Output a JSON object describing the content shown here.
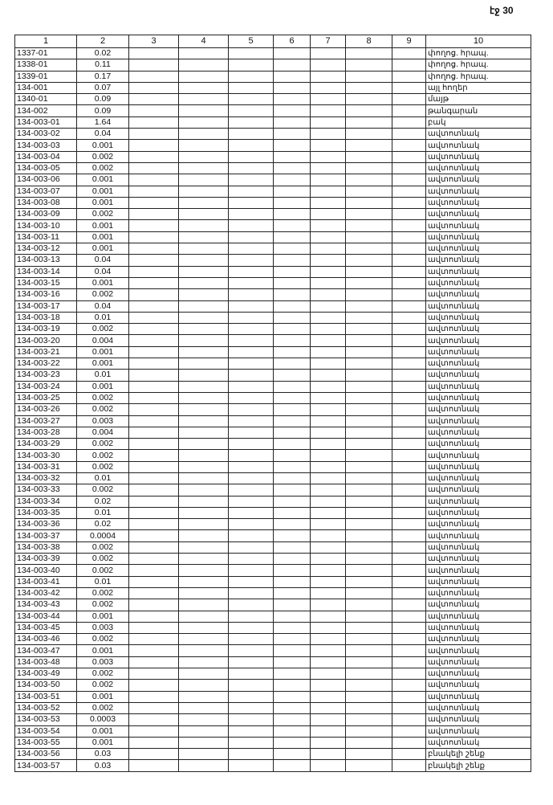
{
  "page_label": "էջ 30",
  "headers": [
    "1",
    "2",
    "3",
    "4",
    "5",
    "6",
    "7",
    "8",
    "9",
    "10"
  ],
  "rows": [
    [
      "1337-01",
      "0.02",
      "փողոց. հրապ."
    ],
    [
      "1338-01",
      "0.11",
      "փողոց. հրապ."
    ],
    [
      "1339-01",
      "0.17",
      "փողոց. հրապ."
    ],
    [
      "134-001",
      "0.07",
      "այլ հողեր"
    ],
    [
      "1340-01",
      "0.09",
      "մայթ"
    ],
    [
      "134-002",
      "0.09",
      "թանգարան"
    ],
    [
      "134-003-01",
      "1.64",
      "բակ"
    ],
    [
      "134-003-02",
      "0.04",
      "ավտոտնակ"
    ],
    [
      "134-003-03",
      "0.001",
      "ավտոտնակ"
    ],
    [
      "134-003-04",
      "0.002",
      "ավտոտնակ"
    ],
    [
      "134-003-05",
      "0.002",
      "ավտոտնակ"
    ],
    [
      "134-003-06",
      "0.001",
      "ավտոտնակ"
    ],
    [
      "134-003-07",
      "0.001",
      "ավտոտնակ"
    ],
    [
      "134-003-08",
      "0.001",
      "ավտոտնակ"
    ],
    [
      "134-003-09",
      "0.002",
      "ավտոտնակ"
    ],
    [
      "134-003-10",
      "0.001",
      "ավտոտնակ"
    ],
    [
      "134-003-11",
      "0.001",
      "ավտոտնակ"
    ],
    [
      "134-003-12",
      "0.001",
      "ավտոտնակ"
    ],
    [
      "134-003-13",
      "0.04",
      "ավտոտնակ"
    ],
    [
      "134-003-14",
      "0.04",
      "ավտոտնակ"
    ],
    [
      "134-003-15",
      "0.001",
      "ավտոտնակ"
    ],
    [
      "134-003-16",
      "0.002",
      "ավտոտնակ"
    ],
    [
      "134-003-17",
      "0.04",
      "ավտոտնակ"
    ],
    [
      "134-003-18",
      "0.01",
      "ավտոտնակ"
    ],
    [
      "134-003-19",
      "0.002",
      "ավտոտնակ"
    ],
    [
      "134-003-20",
      "0.004",
      "ավտոտնակ"
    ],
    [
      "134-003-21",
      "0.001",
      "ավտոտնակ"
    ],
    [
      "134-003-22",
      "0.001",
      "ավտոտնակ"
    ],
    [
      "134-003-23",
      "0.01",
      "ավտոտնակ"
    ],
    [
      "134-003-24",
      "0.001",
      "ավտոտնակ"
    ],
    [
      "134-003-25",
      "0.002",
      "ավտոտնակ"
    ],
    [
      "134-003-26",
      "0.002",
      "ավտոտնակ"
    ],
    [
      "134-003-27",
      "0.003",
      "ավտոտնակ"
    ],
    [
      "134-003-28",
      "0.004",
      "ավտոտնակ"
    ],
    [
      "134-003-29",
      "0.002",
      "ավտոտնակ"
    ],
    [
      "134-003-30",
      "0.002",
      "ավտոտնակ"
    ],
    [
      "134-003-31",
      "0.002",
      "ավտոտնակ"
    ],
    [
      "134-003-32",
      "0.01",
      "ավտոտնակ"
    ],
    [
      "134-003-33",
      "0.002",
      "ավտոտնակ"
    ],
    [
      "134-003-34",
      "0.02",
      "ավտոտնակ"
    ],
    [
      "134-003-35",
      "0.01",
      "ավտոտնակ"
    ],
    [
      "134-003-36",
      "0.02",
      "ավտոտնակ"
    ],
    [
      "134-003-37",
      "0.0004",
      "ավտոտնակ"
    ],
    [
      "134-003-38",
      "0.002",
      "ավտոտնակ"
    ],
    [
      "134-003-39",
      "0.002",
      "ավտոտնակ"
    ],
    [
      "134-003-40",
      "0.002",
      "ավտոտնակ"
    ],
    [
      "134-003-41",
      "0.01",
      "ավտոտնակ"
    ],
    [
      "134-003-42",
      "0.002",
      "ավտոտնակ"
    ],
    [
      "134-003-43",
      "0.002",
      "ավտոտնակ"
    ],
    [
      "134-003-44",
      "0.001",
      "ավտոտնակ"
    ],
    [
      "134-003-45",
      "0.003",
      "ավտոտնակ"
    ],
    [
      "134-003-46",
      "0.002",
      "ավտոտնակ"
    ],
    [
      "134-003-47",
      "0.001",
      "ավտոտնակ"
    ],
    [
      "134-003-48",
      "0.003",
      "ավտոտնակ"
    ],
    [
      "134-003-49",
      "0.002",
      "ավտոտնակ"
    ],
    [
      "134-003-50",
      "0.002",
      "ավտոտնակ"
    ],
    [
      "134-003-51",
      "0.001",
      "ավտոտնակ"
    ],
    [
      "134-003-52",
      "0.002",
      "ավտոտնակ"
    ],
    [
      "134-003-53",
      "0.0003",
      "ավտոտնակ"
    ],
    [
      "134-003-54",
      "0.001",
      "ավտոտնակ"
    ],
    [
      "134-003-55",
      "0.001",
      "ավտոտնակ"
    ],
    [
      "134-003-56",
      "0.03",
      "բնակելի շենք"
    ],
    [
      "134-003-57",
      "0.03",
      "բնակելի շենք"
    ]
  ]
}
